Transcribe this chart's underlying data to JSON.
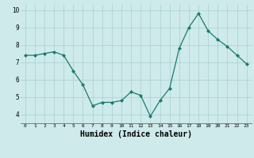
{
  "x": [
    0,
    1,
    2,
    3,
    4,
    5,
    6,
    7,
    8,
    9,
    10,
    11,
    12,
    13,
    14,
    15,
    16,
    17,
    18,
    19,
    20,
    21,
    22,
    23
  ],
  "y": [
    7.4,
    7.4,
    7.5,
    7.6,
    7.4,
    6.5,
    5.7,
    4.5,
    4.7,
    4.7,
    4.8,
    5.3,
    5.1,
    3.9,
    4.8,
    5.5,
    7.8,
    9.0,
    9.8,
    8.8,
    8.3,
    7.9,
    7.4,
    6.9
  ],
  "line_color": "#1a7a6e",
  "marker": "D",
  "marker_size": 2,
  "bg_color": "#ceeaea",
  "grid_color": "#aacfcf",
  "xlabel": "Humidex (Indice chaleur)",
  "xlabel_fontsize": 7,
  "ylabel_ticks": [
    4,
    5,
    6,
    7,
    8,
    9,
    10
  ],
  "xlim": [
    -0.5,
    23.5
  ],
  "ylim": [
    3.5,
    10.3
  ]
}
